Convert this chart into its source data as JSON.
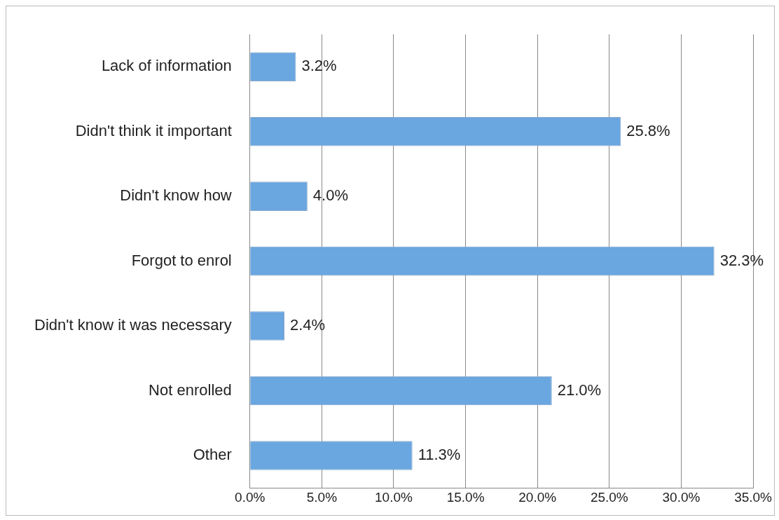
{
  "chart_data": {
    "type": "bar",
    "orientation": "horizontal",
    "categories": [
      "Lack of information",
      "Didn't think it important",
      "Didn't know how",
      "Forgot to enrol",
      "Didn't know it was necessary",
      "Not enrolled",
      "Other"
    ],
    "values": [
      3.2,
      25.8,
      4.0,
      32.3,
      2.4,
      21.0,
      11.3
    ],
    "value_labels": [
      "3.2%",
      "25.8%",
      "4.0%",
      "32.3%",
      "2.4%",
      "21.0%",
      "11.3%"
    ],
    "color": "#6aa6e0",
    "xlim": [
      0,
      35
    ],
    "xticks": [
      {
        "value": 0,
        "label": "0.0%"
      },
      {
        "value": 5,
        "label": "5.0%"
      },
      {
        "value": 10,
        "label": "10.0%"
      },
      {
        "value": 15,
        "label": "15.0%"
      },
      {
        "value": 20,
        "label": "20.0%"
      },
      {
        "value": 25,
        "label": "25.0%"
      },
      {
        "value": 30,
        "label": "30.0%"
      },
      {
        "value": 35,
        "label": "35.0%"
      }
    ],
    "grid": "x",
    "legend": false
  }
}
